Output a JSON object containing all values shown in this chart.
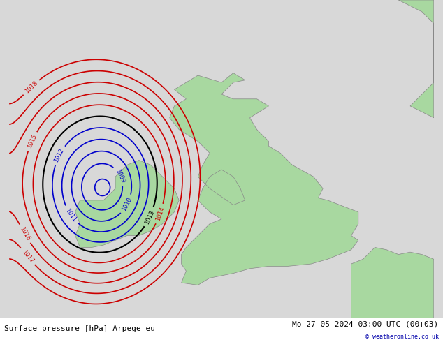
{
  "title_left": "Surface pressure [hPa] Arpege-eu",
  "title_right": "Mo 27-05-2024 03:00 UTC (00+03)",
  "copyright": "© weatheronline.co.uk",
  "bg_color": "#d8d8d8",
  "land_color": "#a8d8a0",
  "sea_color": "#d8d8d8",
  "blue_line_color": "#0000cc",
  "red_line_color": "#cc0000",
  "black_line_color": "#000000",
  "label_fontsize": 7,
  "footer_fontsize": 8
}
